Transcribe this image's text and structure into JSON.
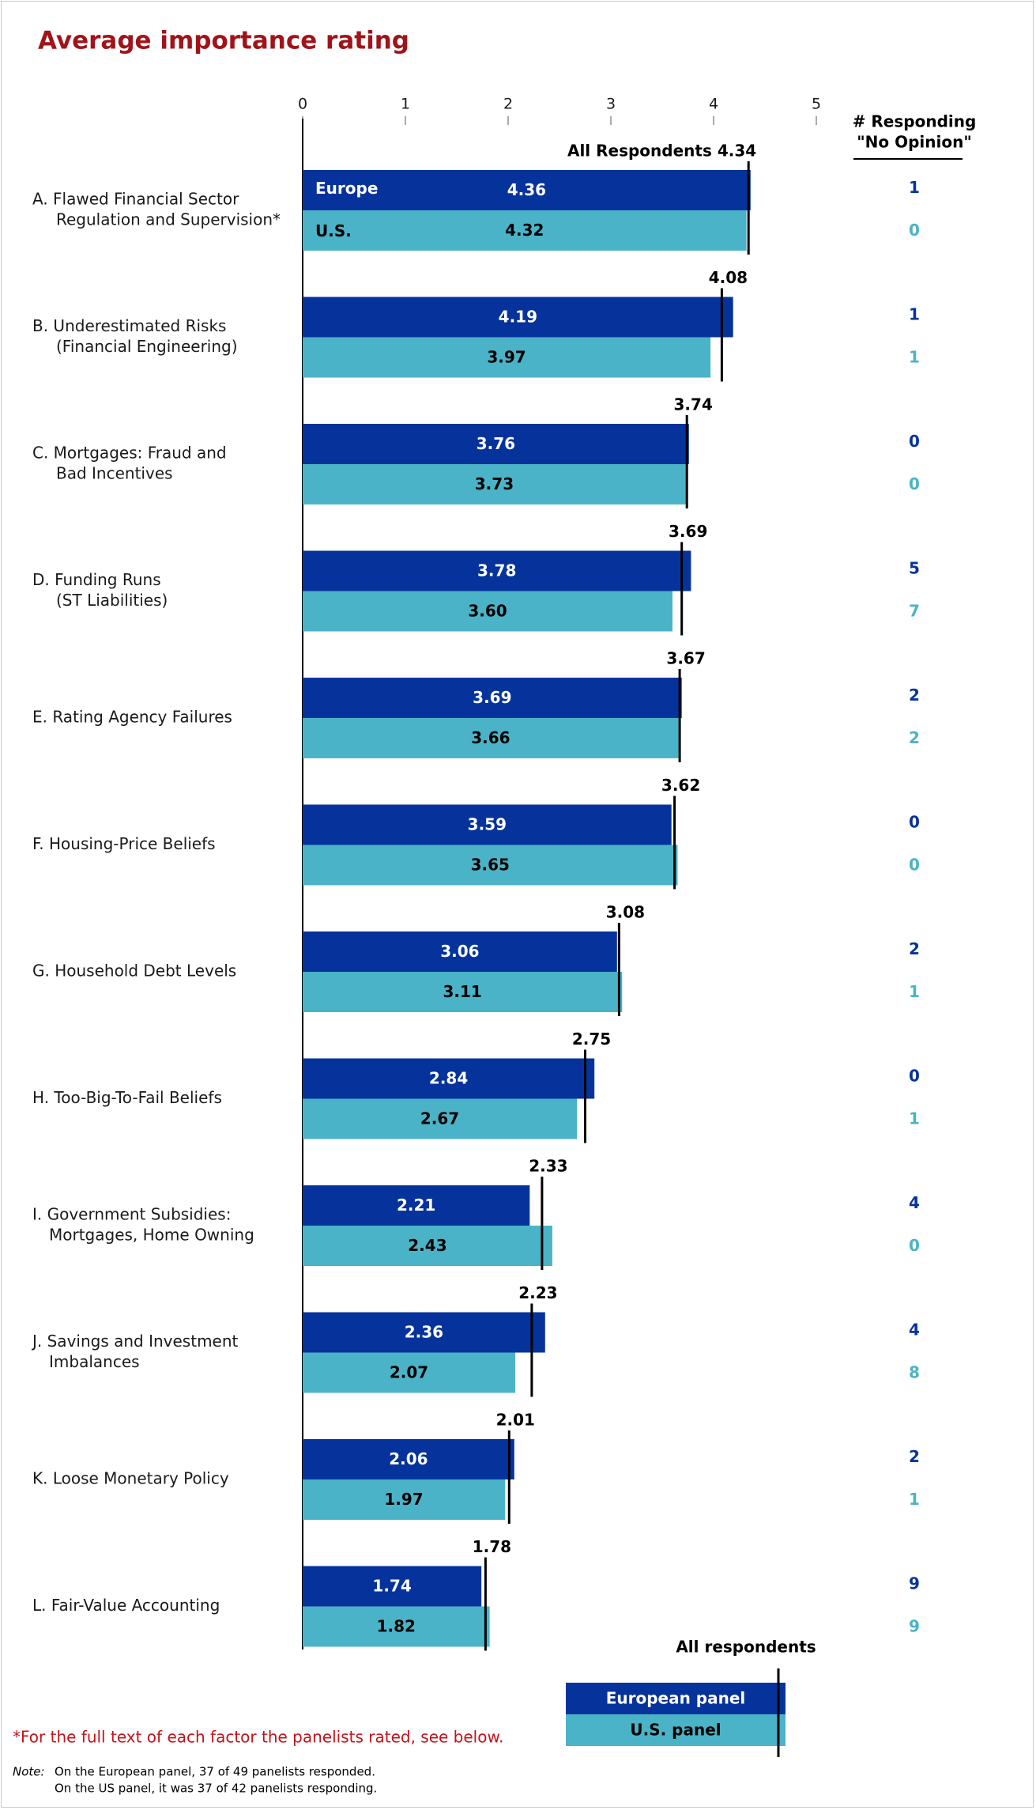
{
  "colors": {
    "europe": "#06339b",
    "us": "#4bb3c7",
    "title": "#a01419",
    "footnote": "#c0141b",
    "label": "#1a1a1a",
    "marker": "#000000"
  },
  "chart_data": {
    "type": "bar",
    "orientation": "horizontal",
    "title": "Average importance rating",
    "xlim": [
      0,
      5
    ],
    "x_ticks": [
      "0",
      "1",
      "2",
      "3",
      "4",
      "5"
    ],
    "grid": false,
    "categories": [
      [
        "A. Flawed Financial Sector",
        "Regulation and Supervision*"
      ],
      [
        "B. Underestimated Risks",
        "(Financial Engineering)"
      ],
      [
        "C. Mortgages: Fraud and",
        "Bad Incentives"
      ],
      [
        "D. Funding Runs",
        "(ST Liabilities)"
      ],
      [
        "E. Rating Agency Failures"
      ],
      [
        "F. Housing-Price Beliefs"
      ],
      [
        "G. Household Debt Levels"
      ],
      [
        "H. Too-Big-To-Fail Beliefs"
      ],
      [
        "I. Government Subsidies:",
        "Mortgages, Home Owning"
      ],
      [
        "J. Savings and Investment",
        "Imbalances"
      ],
      [
        "K. Loose Monetary Policy"
      ],
      [
        "L. Fair-Value Accounting"
      ]
    ],
    "series": [
      {
        "name": "European panel",
        "inbar_label_first": "Europe",
        "values": [
          4.36,
          4.19,
          3.76,
          3.78,
          3.69,
          3.59,
          3.06,
          2.84,
          2.21,
          2.36,
          2.06,
          1.74
        ],
        "value_labels": [
          "4.36",
          "4.19",
          "3.76",
          "3.78",
          "3.69",
          "3.59",
          "3.06",
          "2.84",
          "2.21",
          "2.36",
          "2.06",
          "1.74"
        ]
      },
      {
        "name": "U.S. panel",
        "inbar_label_first": "U.S.",
        "values": [
          4.32,
          3.97,
          3.73,
          3.6,
          3.66,
          3.65,
          3.11,
          2.67,
          2.43,
          2.07,
          1.97,
          1.82
        ],
        "value_labels": [
          "4.32",
          "3.97",
          "3.73",
          "3.60",
          "3.66",
          "3.65",
          "3.11",
          "2.67",
          "2.43",
          "2.07",
          "1.97",
          "1.82"
        ]
      }
    ],
    "all_respondents": {
      "name": "All respondents",
      "first_label_prefix": "All Respondents",
      "values": [
        4.34,
        4.08,
        3.74,
        3.69,
        3.67,
        3.62,
        3.08,
        2.75,
        2.33,
        2.23,
        2.01,
        1.78
      ],
      "value_labels": [
        "4.34",
        "4.08",
        "3.74",
        "3.69",
        "3.67",
        "3.62",
        "3.08",
        "2.75",
        "2.33",
        "2.23",
        "2.01",
        "1.78"
      ]
    },
    "no_opinion": {
      "header": [
        "# Responding",
        "\"No Opinion\""
      ],
      "europe": [
        "1",
        "1",
        "0",
        "5",
        "2",
        "0",
        "2",
        "0",
        "4",
        "4",
        "2",
        "9"
      ],
      "us": [
        "0",
        "1",
        "0",
        "7",
        "2",
        "0",
        "1",
        "1",
        "0",
        "8",
        "1",
        "9"
      ]
    },
    "legend": {
      "title": "All respondents",
      "europe_label": "European panel",
      "us_label": "U.S. panel",
      "placement": "bottom-right"
    }
  },
  "footnote": "*For the full text of each factor the panelists rated, see below.",
  "note": {
    "label": "Note:",
    "lines": [
      "On the European panel, 37 of 49 panelists responded.",
      "On the US panel, it was 37 of 42 panelists responding."
    ]
  }
}
